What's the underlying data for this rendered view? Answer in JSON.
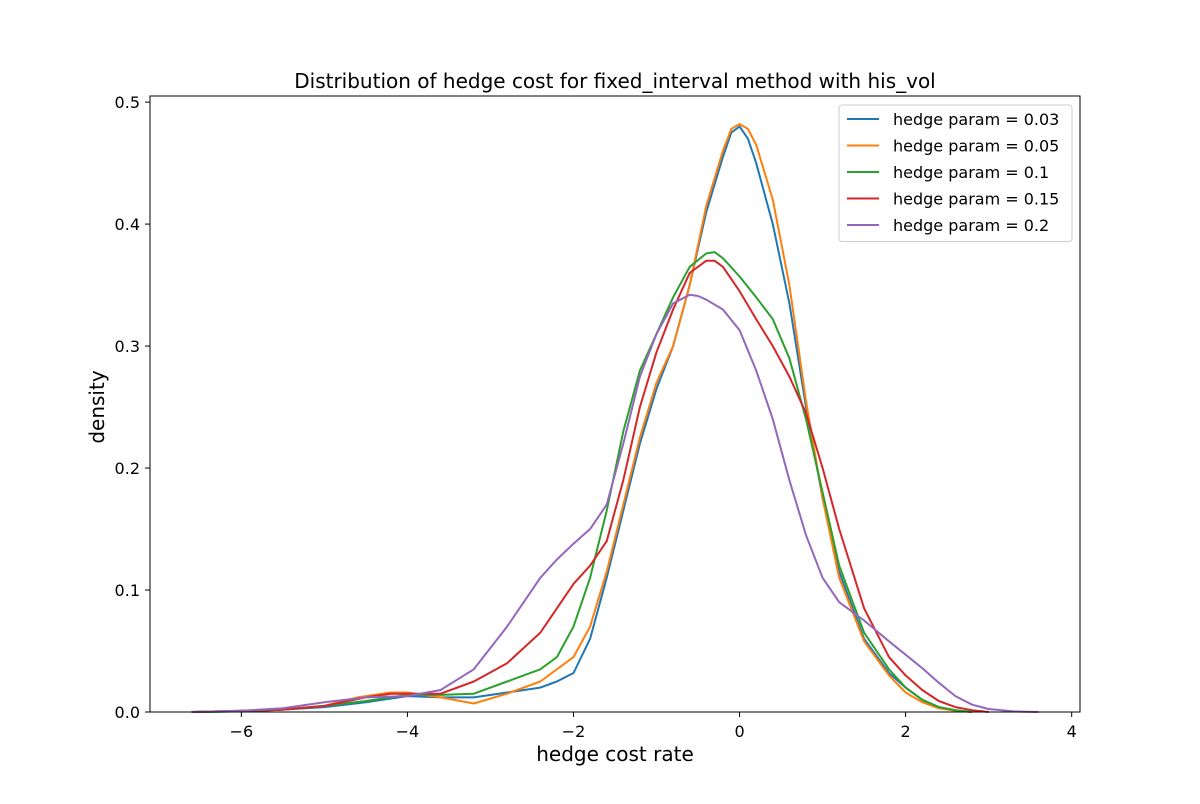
{
  "chart_data": {
    "type": "line",
    "title": "Distribution of hedge cost for fixed_interval method with his_vol",
    "xlabel": "hedge cost rate",
    "ylabel": "density",
    "xlim": [
      -7.1,
      4.1
    ],
    "ylim": [
      0,
      0.505
    ],
    "xticks": [
      -6,
      -4,
      -2,
      0,
      2,
      4
    ],
    "xtick_labels": [
      "−6",
      "−4",
      "−2",
      "0",
      "2",
      "4"
    ],
    "yticks": [
      0.0,
      0.1,
      0.2,
      0.3,
      0.4,
      0.5
    ],
    "ytick_labels": [
      "0.0",
      "0.1",
      "0.2",
      "0.3",
      "0.4",
      "0.5"
    ],
    "grid": false,
    "legend_position": "top-right",
    "series": [
      {
        "name": "hedge param = 0.03",
        "color": "#1f77b4",
        "x": [
          -6.6,
          -6.0,
          -5.5,
          -5.0,
          -4.5,
          -4.0,
          -3.6,
          -3.2,
          -2.8,
          -2.4,
          -2.2,
          -2.0,
          -1.8,
          -1.6,
          -1.4,
          -1.2,
          -1.0,
          -0.8,
          -0.6,
          -0.4,
          -0.2,
          -0.1,
          0.0,
          0.1,
          0.2,
          0.4,
          0.6,
          0.8,
          1.0,
          1.2,
          1.5,
          1.8,
          2.0,
          2.2,
          2.4,
          2.6,
          2.8
        ],
        "y": [
          0.0,
          0.0005,
          0.002,
          0.004,
          0.008,
          0.013,
          0.012,
          0.012,
          0.016,
          0.02,
          0.025,
          0.032,
          0.06,
          0.11,
          0.165,
          0.22,
          0.265,
          0.3,
          0.35,
          0.41,
          0.455,
          0.475,
          0.48,
          0.47,
          0.45,
          0.4,
          0.335,
          0.25,
          0.175,
          0.115,
          0.06,
          0.032,
          0.02,
          0.01,
          0.004,
          0.0015,
          0.0
        ]
      },
      {
        "name": "hedge param = 0.05",
        "color": "#ff7f0e",
        "x": [
          -6.6,
          -6.0,
          -5.5,
          -5.0,
          -4.6,
          -4.2,
          -4.0,
          -3.6,
          -3.2,
          -2.8,
          -2.4,
          -2.0,
          -1.8,
          -1.6,
          -1.4,
          -1.2,
          -1.0,
          -0.8,
          -0.6,
          -0.4,
          -0.2,
          -0.1,
          0.0,
          0.1,
          0.2,
          0.4,
          0.6,
          0.8,
          1.0,
          1.2,
          1.5,
          1.8,
          2.0,
          2.2,
          2.4,
          2.6,
          2.8
        ],
        "y": [
          0.0,
          0.001,
          0.002,
          0.005,
          0.012,
          0.016,
          0.016,
          0.012,
          0.007,
          0.015,
          0.025,
          0.045,
          0.07,
          0.115,
          0.17,
          0.225,
          0.27,
          0.3,
          0.35,
          0.415,
          0.46,
          0.478,
          0.482,
          0.478,
          0.465,
          0.42,
          0.35,
          0.255,
          0.175,
          0.11,
          0.058,
          0.03,
          0.016,
          0.008,
          0.003,
          0.001,
          0.0
        ]
      },
      {
        "name": "hedge param = 0.1",
        "color": "#2ca02c",
        "x": [
          -6.6,
          -6.0,
          -5.5,
          -5.0,
          -4.5,
          -4.0,
          -3.6,
          -3.2,
          -2.8,
          -2.4,
          -2.2,
          -2.0,
          -1.8,
          -1.6,
          -1.4,
          -1.2,
          -1.0,
          -0.8,
          -0.6,
          -0.4,
          -0.3,
          -0.2,
          0.0,
          0.2,
          0.4,
          0.6,
          0.8,
          1.0,
          1.2,
          1.5,
          1.8,
          2.0,
          2.2,
          2.4,
          2.6,
          2.8
        ],
        "y": [
          0.0,
          0.0005,
          0.002,
          0.005,
          0.009,
          0.014,
          0.014,
          0.015,
          0.025,
          0.035,
          0.045,
          0.07,
          0.11,
          0.165,
          0.23,
          0.28,
          0.31,
          0.34,
          0.365,
          0.376,
          0.377,
          0.372,
          0.357,
          0.34,
          0.322,
          0.29,
          0.24,
          0.18,
          0.12,
          0.065,
          0.035,
          0.02,
          0.01,
          0.004,
          0.0015,
          0.0
        ]
      },
      {
        "name": "hedge param = 0.15",
        "color": "#d62728",
        "x": [
          -6.6,
          -6.0,
          -5.5,
          -5.0,
          -4.5,
          -4.2,
          -4.0,
          -3.6,
          -3.2,
          -2.8,
          -2.4,
          -2.0,
          -1.8,
          -1.6,
          -1.4,
          -1.2,
          -1.0,
          -0.8,
          -0.6,
          -0.4,
          -0.3,
          -0.2,
          0.0,
          0.2,
          0.4,
          0.6,
          0.8,
          1.0,
          1.2,
          1.5,
          1.8,
          2.0,
          2.2,
          2.4,
          2.6,
          2.8,
          3.0
        ],
        "y": [
          0.0,
          0.001,
          0.002,
          0.005,
          0.012,
          0.015,
          0.015,
          0.015,
          0.025,
          0.04,
          0.065,
          0.105,
          0.12,
          0.14,
          0.19,
          0.25,
          0.295,
          0.33,
          0.36,
          0.37,
          0.37,
          0.365,
          0.345,
          0.322,
          0.3,
          0.275,
          0.245,
          0.2,
          0.15,
          0.085,
          0.045,
          0.03,
          0.018,
          0.009,
          0.004,
          0.0015,
          0.0
        ]
      },
      {
        "name": "hedge param = 0.2",
        "color": "#9467bd",
        "x": [
          -6.6,
          -6.0,
          -5.5,
          -5.0,
          -4.5,
          -4.0,
          -3.6,
          -3.2,
          -2.8,
          -2.4,
          -2.2,
          -2.0,
          -1.8,
          -1.6,
          -1.4,
          -1.2,
          -1.0,
          -0.8,
          -0.6,
          -0.5,
          -0.4,
          -0.2,
          0.0,
          0.2,
          0.4,
          0.6,
          0.8,
          1.0,
          1.2,
          1.5,
          1.8,
          2.0,
          2.2,
          2.4,
          2.6,
          2.8,
          3.0,
          3.3,
          3.6
        ],
        "y": [
          0.0,
          0.001,
          0.003,
          0.008,
          0.012,
          0.013,
          0.018,
          0.035,
          0.07,
          0.11,
          0.125,
          0.138,
          0.15,
          0.17,
          0.22,
          0.275,
          0.31,
          0.335,
          0.342,
          0.341,
          0.338,
          0.33,
          0.313,
          0.28,
          0.24,
          0.19,
          0.145,
          0.11,
          0.09,
          0.075,
          0.058,
          0.047,
          0.036,
          0.024,
          0.013,
          0.006,
          0.0025,
          0.0005,
          0.0
        ]
      }
    ]
  }
}
